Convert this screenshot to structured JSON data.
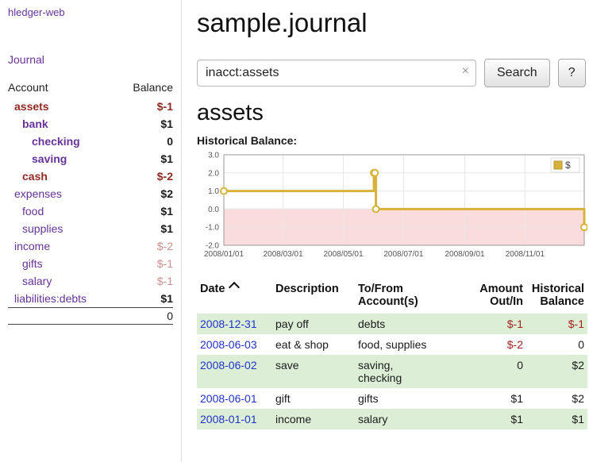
{
  "app": {
    "brand": "hledger-web"
  },
  "sidebar": {
    "journal_link": "Journal",
    "accounts": {
      "header": {
        "account": "Account",
        "balance": "Balance"
      },
      "rows": [
        {
          "name": "assets",
          "balance": "$-1"
        },
        {
          "name": "bank",
          "balance": "$1"
        },
        {
          "name": "checking",
          "balance": "0"
        },
        {
          "name": "saving",
          "balance": "$1"
        },
        {
          "name": "cash",
          "balance": "$-2"
        },
        {
          "name": "expenses",
          "balance": "$2"
        },
        {
          "name": "food",
          "balance": "$1"
        },
        {
          "name": "supplies",
          "balance": "$1"
        },
        {
          "name": "income",
          "balance": "$-2"
        },
        {
          "name": "gifts",
          "balance": "$-1"
        },
        {
          "name": "salary",
          "balance": "$-1"
        },
        {
          "name": "liabilities:debts",
          "balance": "$1"
        }
      ],
      "total": "0"
    }
  },
  "main": {
    "title": "sample.journal",
    "search": {
      "value": "inacct:assets",
      "clear_icon": "×",
      "button_label": "Search",
      "help_label": "?"
    },
    "heading": "assets",
    "chart_title": "Historical Balance:"
  },
  "chart_data": {
    "type": "line",
    "step": true,
    "title": "Historical Balance:",
    "x_start": "2008-01-01",
    "x_end": "2008-12-31",
    "xticks": [
      "2008/01/01",
      "2008/03/01",
      "2008/05/01",
      "2008/07/01",
      "2008/09/01",
      "2008/11/01"
    ],
    "yticks": [
      3.0,
      2.0,
      1.0,
      0.0,
      -1.0,
      -2.0
    ],
    "ylim": [
      -2,
      3
    ],
    "grid": true,
    "legend_position": "top-right",
    "negative_region_color": "#fbdcdc",
    "series": [
      {
        "name": "$",
        "color": "#d9b23c",
        "points": [
          {
            "date": "2008-01-01",
            "value": 1
          },
          {
            "date": "2008-06-01",
            "value": 2
          },
          {
            "date": "2008-06-02",
            "value": 2
          },
          {
            "date": "2008-06-03",
            "value": 0
          },
          {
            "date": "2008-12-31",
            "value": -1
          }
        ]
      }
    ]
  },
  "register": {
    "headers": {
      "date": "Date",
      "description": "Description",
      "account": "To/From Account(s)",
      "amount": "Amount Out/In",
      "balance": "Historical Balance"
    },
    "rows": [
      {
        "date": "2008-12-31",
        "description": "pay off",
        "account": "debts",
        "amount": "$-1",
        "balance": "$-1"
      },
      {
        "date": "2008-06-03",
        "description": "eat & shop",
        "account": "food, supplies",
        "amount": "$-2",
        "balance": "0"
      },
      {
        "date": "2008-06-02",
        "description": "save",
        "account": "saving,\nchecking",
        "amount": "0",
        "balance": "$2"
      },
      {
        "date": "2008-06-01",
        "description": "gift",
        "account": "gifts",
        "amount": "$1",
        "balance": "$2"
      },
      {
        "date": "2008-01-01",
        "description": "income",
        "account": "salary",
        "amount": "$1",
        "balance": "$1"
      }
    ]
  }
}
